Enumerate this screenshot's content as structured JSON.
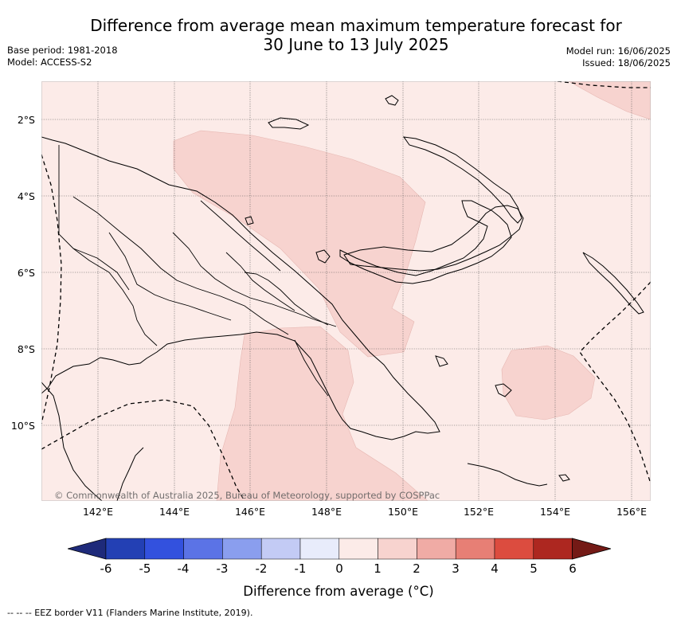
{
  "title_line1": "Difference from average mean maximum temperature forecast for",
  "title_line2": "30 June to 13 July 2025",
  "base_period": "Base period: 1981-2018",
  "model": "Model: ACCESS-S2",
  "model_run": "Model run: 16/06/2025",
  "issued": "Issued: 18/06/2025",
  "latitude_labels": [
    "2°S",
    "4°S",
    "6°S",
    "8°S",
    "10°S"
  ],
  "longitude_labels": [
    "142°E",
    "144°E",
    "146°E",
    "148°E",
    "150°E",
    "152°E",
    "154°E",
    "156°E"
  ],
  "copyright": "© Commonwealth of Australia 2025, Bureau of Meteorology, supported by COSPPac",
  "colorbar": {
    "tick_labels": [
      "-6",
      "-5",
      "-4",
      "-3",
      "-2",
      "-1",
      "0",
      "1",
      "2",
      "3",
      "4",
      "5",
      "6"
    ],
    "colors": [
      "#1e2a7a",
      "#2340b4",
      "#3351de",
      "#5b73e6",
      "#8a9eee",
      "#c3cbf5",
      "#e8ecfb",
      "#fcebe8",
      "#f7d3cf",
      "#f0aba5",
      "#e77f75",
      "#dc4c3f",
      "#ad2720",
      "#741a16"
    ],
    "title": "Difference from average (°C)"
  },
  "map": {
    "background_class_color": "#fcebe8",
    "anomaly_class_color": "#f7d3cf",
    "anomaly_class": "1 to 2"
  },
  "footnote": "-- -- -- EEZ border V11 (Flanders Marine Institute, 2019)."
}
